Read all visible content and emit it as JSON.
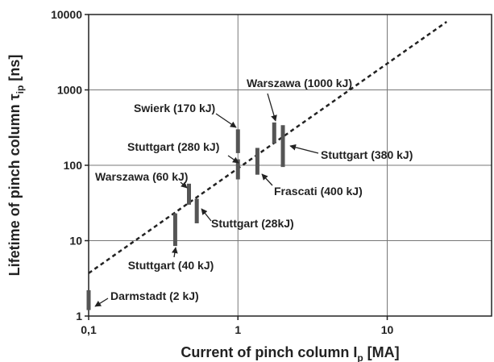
{
  "chart_data": {
    "type": "range",
    "xlabel": {
      "main": "Current of pinch column I",
      "sub": "p",
      "unit": " [MA]"
    },
    "ylabel": {
      "main": "Lifetime of pinch column τ",
      "sub": "ip",
      "unit": " [ns]"
    },
    "xlog": true,
    "ylog": true,
    "grid": true,
    "xlim": [
      0.1,
      50
    ],
    "ylim": [
      1,
      10000
    ],
    "xticks": [
      {
        "value": 0.1,
        "label": "0,1"
      },
      1,
      10
    ],
    "yticks": [
      1,
      10,
      100,
      1000,
      10000
    ],
    "color": "#555555",
    "points": [
      {
        "label": "Darmstadt (2 kJ)",
        "x": 0.1,
        "low": 1.2,
        "high": 2.2
      },
      {
        "label": "Stuttgart (40 kJ)",
        "x": 0.38,
        "low": 8.5,
        "high": 23
      },
      {
        "label": "Warszawa (60 kJ)",
        "x": 0.47,
        "low": 30,
        "high": 57
      },
      {
        "label": "Stuttgart (28kJ)",
        "x": 0.53,
        "low": 17,
        "high": 36
      },
      {
        "label": "Stuttgart (280 kJ)",
        "x": 1.0,
        "low": 65,
        "high": 120
      },
      {
        "label": "Swierk (170 kJ)",
        "x": 1.0,
        "low": 145,
        "high": 300
      },
      {
        "label": "Frascati (400 kJ)",
        "x": 1.35,
        "low": 75,
        "high": 170
      },
      {
        "label": "Warszawa (1000 kJ)",
        "x": 1.75,
        "low": 195,
        "high": 370
      },
      {
        "label": "Stuttgart (380 kJ)",
        "x": 2.0,
        "low": 95,
        "high": 340
      }
    ],
    "fit": {
      "x": [
        0.1,
        25
      ],
      "y": [
        3.7,
        8000
      ],
      "color": "#222222"
    }
  }
}
